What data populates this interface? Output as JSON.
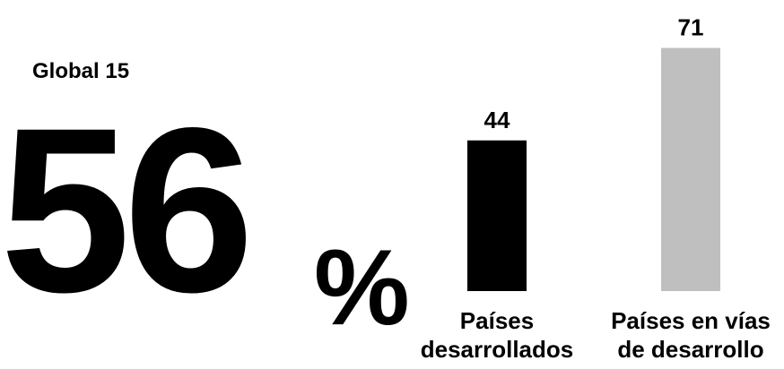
{
  "chart_data": {
    "type": "bar",
    "stat_label": "Global 15",
    "stat_value": 56,
    "stat_unit": "%",
    "categories": [
      "Países desarrollados",
      "Países en vías de desarrollo"
    ],
    "values": [
      44,
      71
    ],
    "colors": [
      "#000000",
      "#bfbfbf"
    ],
    "ylim": [
      0,
      85
    ]
  }
}
